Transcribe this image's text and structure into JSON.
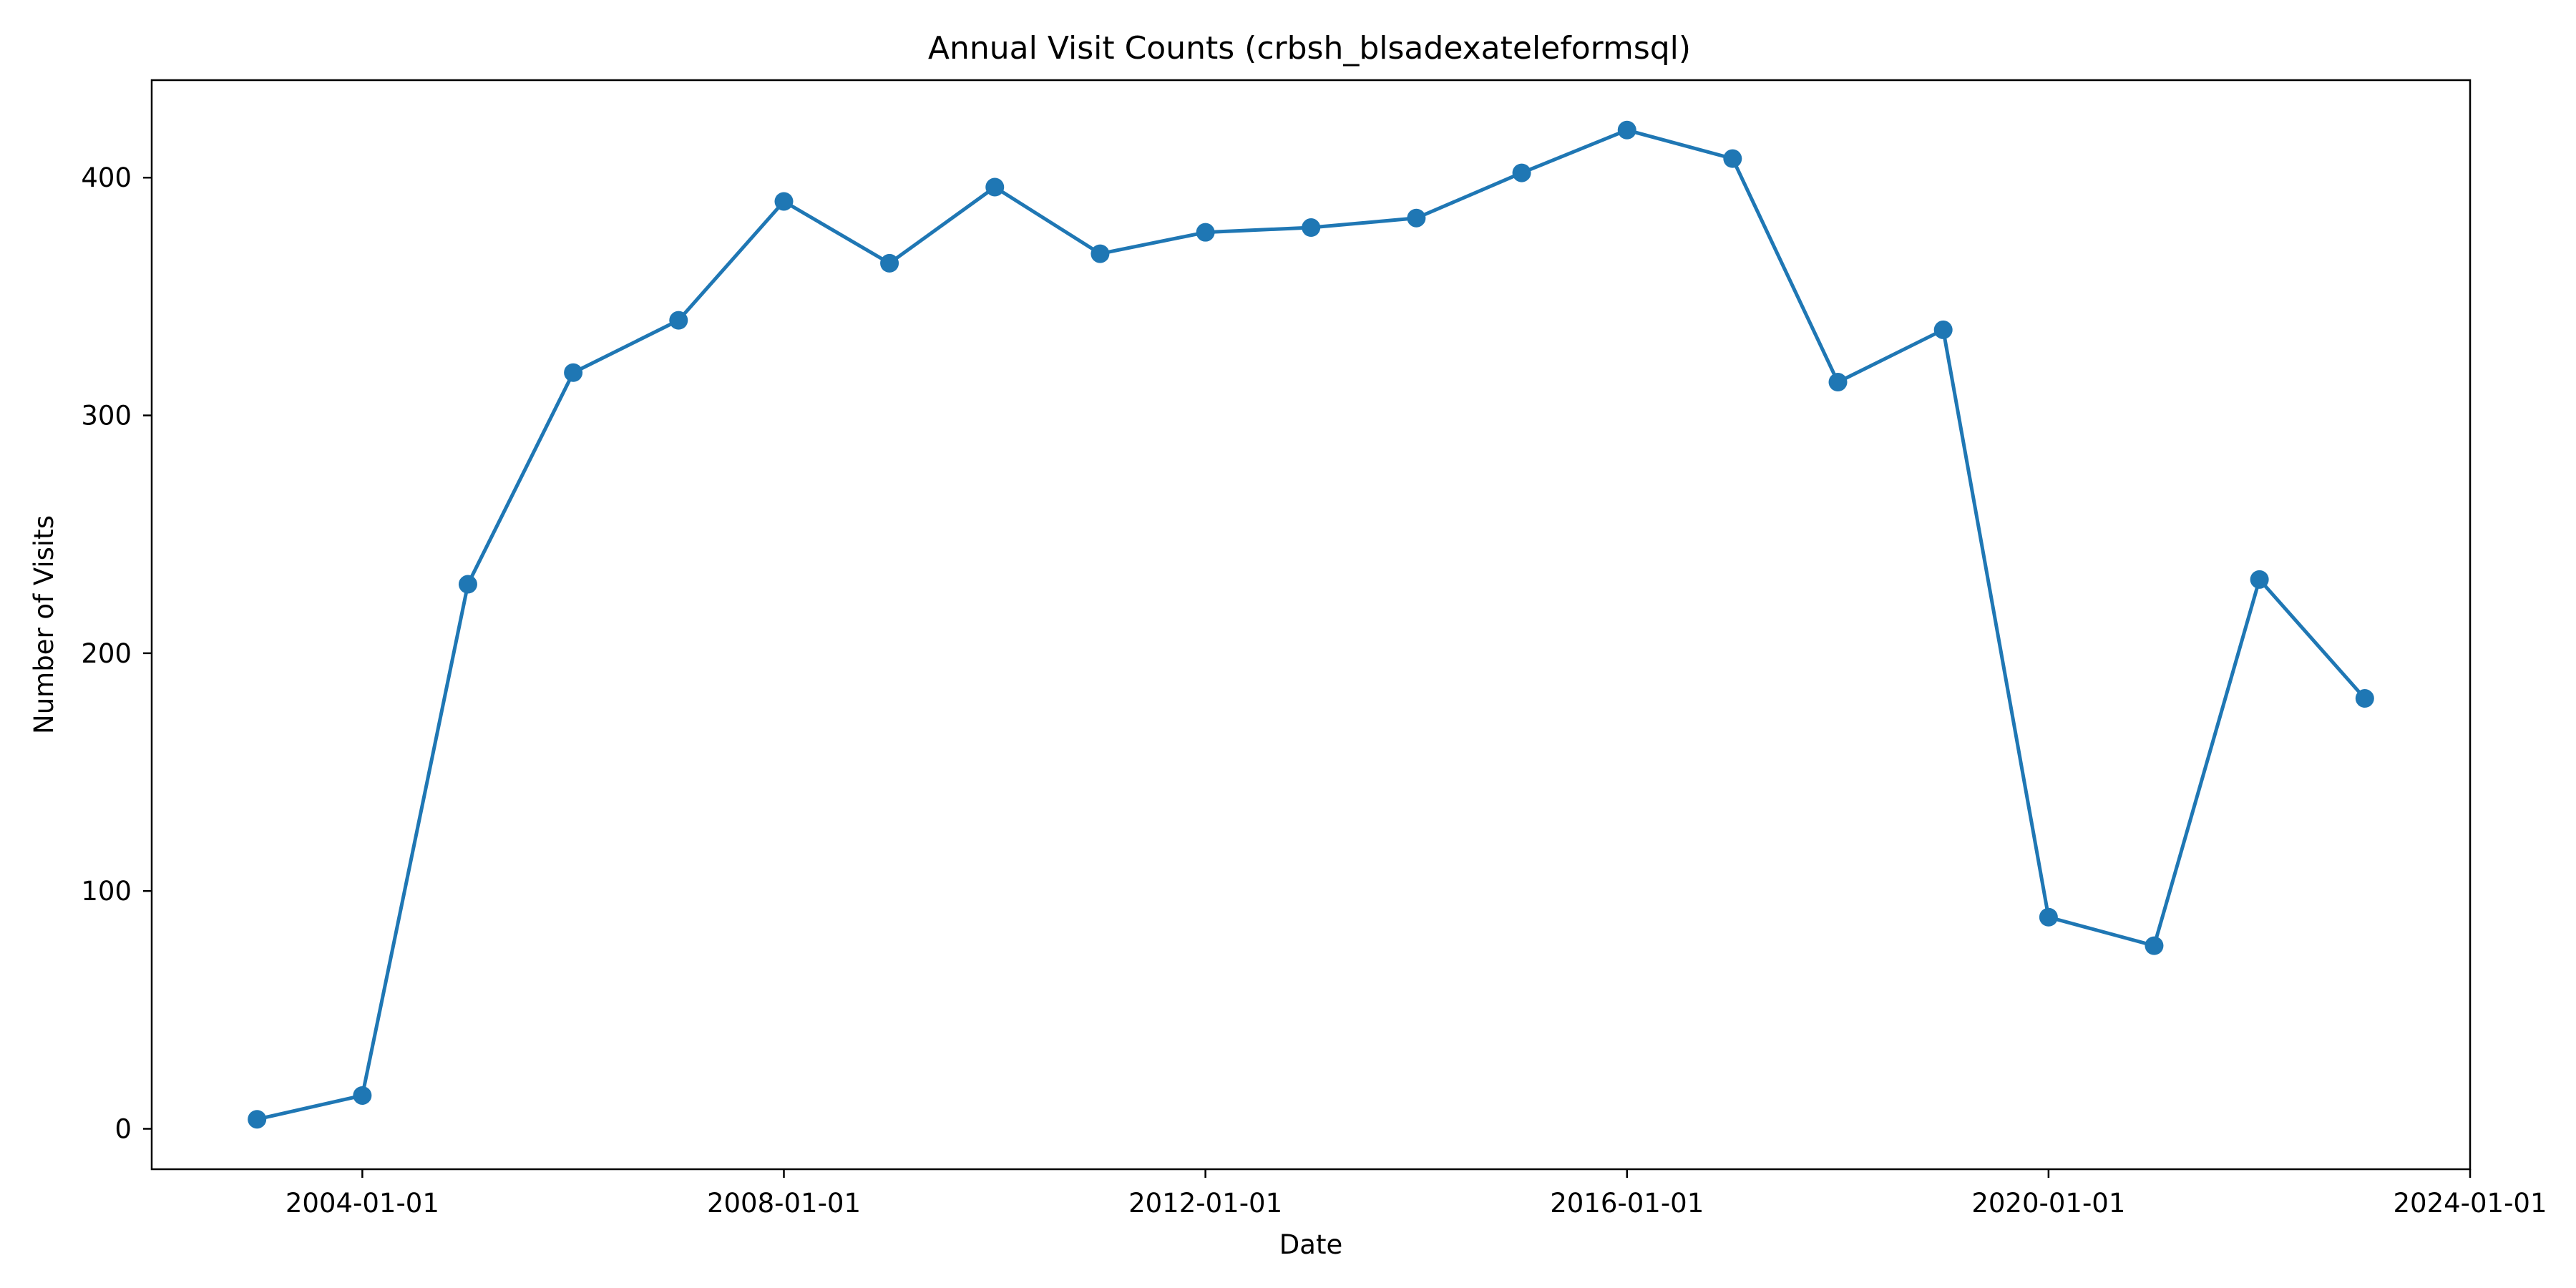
{
  "chart_data": {
    "type": "line",
    "title": "Annual Visit Counts (crbsh_blsadexateleformsql)",
    "xlabel": "Date",
    "ylabel": "Number of Visits",
    "x_tick_labels": [
      "2004-01-01",
      "2008-01-01",
      "2012-01-01",
      "2016-01-01",
      "2020-01-01",
      "2024-01-01"
    ],
    "y_tick_labels": [
      "0",
      "100",
      "200",
      "300",
      "400"
    ],
    "xlim": [
      "2002-01-01",
      "2024-01-01"
    ],
    "ylim": [
      -17,
      441
    ],
    "grid": false,
    "series": [
      {
        "color": "#1f77b4",
        "marker": "circle",
        "x": [
          "2003-01-01",
          "2004-01-01",
          "2005-01-01",
          "2006-01-01",
          "2007-01-01",
          "2008-01-01",
          "2009-01-01",
          "2010-01-01",
          "2011-01-01",
          "2012-01-01",
          "2013-01-01",
          "2014-01-01",
          "2015-01-01",
          "2016-01-01",
          "2017-01-01",
          "2018-01-01",
          "2019-01-01",
          "2020-01-01",
          "2021-01-01",
          "2022-01-01",
          "2023-01-01"
        ],
        "y": [
          4,
          14,
          229,
          318,
          340,
          390,
          364,
          396,
          368,
          377,
          379,
          383,
          402,
          420,
          408,
          314,
          336,
          89,
          77,
          231,
          181
        ]
      }
    ]
  }
}
